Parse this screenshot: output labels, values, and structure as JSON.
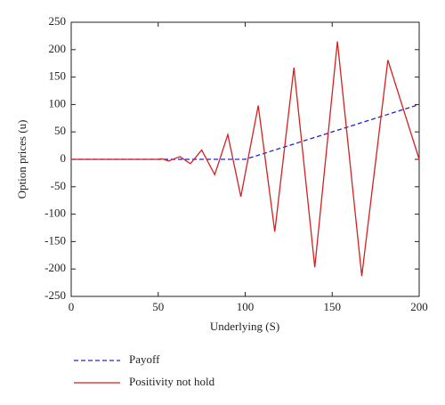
{
  "chart_data": {
    "type": "line",
    "xlabel": "Underlying (S)",
    "ylabel": "Option prices (u)",
    "xlim": [
      0,
      200
    ],
    "xticks": [
      0,
      50,
      100,
      150,
      200
    ],
    "ylim": [
      -250,
      250
    ],
    "yticks": [
      -250,
      -200,
      -150,
      -100,
      -50,
      0,
      50,
      100,
      150,
      200,
      250
    ],
    "grid": false,
    "series": [
      {
        "name": "Payoff",
        "color": "#2323d0",
        "line_style": "dashed",
        "x": [
          0,
          100,
          200
        ],
        "values": [
          0,
          0,
          100
        ]
      },
      {
        "name": "Positivity not hold",
        "color": "#d42020",
        "line_style": "solid",
        "x": [
          0,
          50,
          52,
          56,
          62.5,
          68.5,
          75,
          82.5,
          90,
          97.5,
          107.5,
          117,
          128,
          140,
          153,
          167,
          182,
          200
        ],
        "values": [
          0,
          0,
          1,
          -3,
          5,
          -8,
          17,
          -28,
          45,
          -68,
          98,
          -132,
          167,
          -197,
          215,
          -213,
          181,
          0
        ]
      }
    ]
  }
}
